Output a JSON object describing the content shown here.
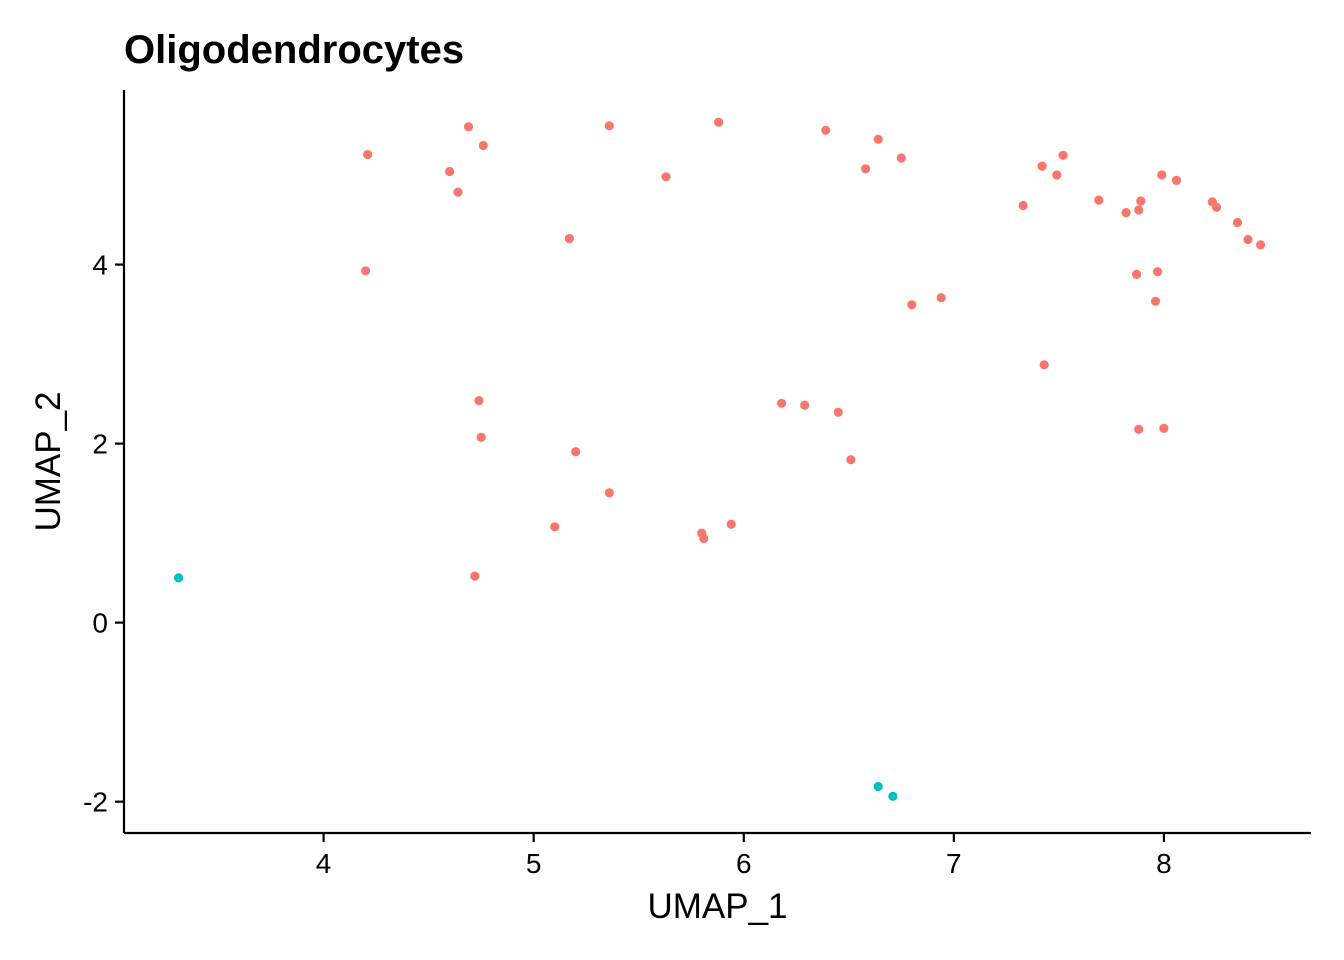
{
  "chart_data": {
    "type": "scatter",
    "title": "Oligodendrocytes",
    "xlabel": "UMAP_1",
    "ylabel": "UMAP_2",
    "xlim": [
      3.05,
      8.7
    ],
    "ylim": [
      -2.35,
      5.95
    ],
    "x_ticks": [
      4,
      5,
      6,
      7,
      8
    ],
    "y_ticks": [
      -2,
      0,
      2,
      4
    ],
    "x_tick_labels": [
      "4",
      "5",
      "6",
      "7",
      "8"
    ],
    "y_tick_labels": [
      "-2",
      "0",
      "2",
      "4"
    ],
    "grid": false,
    "legend": "none",
    "series": [
      {
        "color": "#F8766D",
        "points": [
          [
            4.21,
            5.23
          ],
          [
            4.2,
            3.93
          ],
          [
            4.69,
            5.54
          ],
          [
            4.76,
            5.33
          ],
          [
            4.6,
            5.04
          ],
          [
            4.64,
            4.81
          ],
          [
            5.36,
            5.55
          ],
          [
            5.88,
            5.59
          ],
          [
            5.63,
            4.98
          ],
          [
            5.17,
            4.29
          ],
          [
            6.39,
            5.5
          ],
          [
            6.64,
            5.4
          ],
          [
            6.58,
            5.07
          ],
          [
            6.75,
            5.19
          ],
          [
            7.33,
            4.66
          ],
          [
            7.42,
            5.1
          ],
          [
            7.52,
            5.22
          ],
          [
            7.49,
            5.0
          ],
          [
            7.69,
            4.72
          ],
          [
            7.82,
            4.58
          ],
          [
            7.88,
            4.61
          ],
          [
            7.89,
            4.71
          ],
          [
            7.99,
            5.0
          ],
          [
            8.06,
            4.94
          ],
          [
            8.23,
            4.7
          ],
          [
            8.25,
            4.64
          ],
          [
            8.35,
            4.47
          ],
          [
            8.4,
            4.28
          ],
          [
            8.46,
            4.22
          ],
          [
            7.87,
            3.89
          ],
          [
            7.97,
            3.92
          ],
          [
            7.96,
            3.59
          ],
          [
            6.94,
            3.63
          ],
          [
            6.8,
            3.55
          ],
          [
            7.43,
            2.88
          ],
          [
            7.88,
            2.16
          ],
          [
            8.0,
            2.17
          ],
          [
            4.74,
            2.48
          ],
          [
            4.75,
            2.07
          ],
          [
            5.2,
            1.91
          ],
          [
            5.36,
            1.45
          ],
          [
            5.1,
            1.07
          ],
          [
            4.72,
            0.52
          ],
          [
            5.8,
            1.0
          ],
          [
            5.81,
            0.94
          ],
          [
            5.94,
            1.1
          ],
          [
            6.18,
            2.45
          ],
          [
            6.29,
            2.43
          ],
          [
            6.45,
            2.35
          ],
          [
            6.51,
            1.82
          ]
        ]
      },
      {
        "color": "#00BFC4",
        "points": [
          [
            3.31,
            0.5
          ],
          [
            6.64,
            -1.83
          ],
          [
            6.71,
            -1.94
          ]
        ]
      }
    ]
  }
}
